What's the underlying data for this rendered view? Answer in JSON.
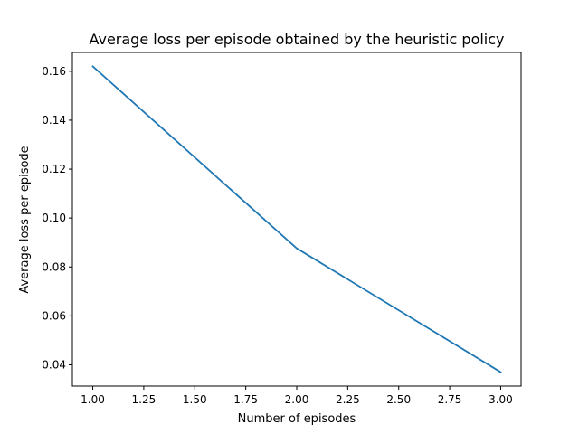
{
  "chart_data": {
    "type": "line",
    "title": "Average loss per episode obtained by the heuristic policy",
    "xlabel": "Number of episodes",
    "ylabel": "Average loss per episode",
    "xlim": [
      0.9,
      3.1
    ],
    "ylim": [
      0.0313,
      0.1677
    ],
    "xticks": [
      1.0,
      1.25,
      1.5,
      1.75,
      2.0,
      2.25,
      2.5,
      2.75,
      3.0
    ],
    "xtick_labels": [
      "1.00",
      "1.25",
      "1.50",
      "1.75",
      "2.00",
      "2.25",
      "2.50",
      "2.75",
      "3.00"
    ],
    "yticks": [
      0.04,
      0.06,
      0.08,
      0.1,
      0.12,
      0.14,
      0.16
    ],
    "ytick_labels": [
      "0.04",
      "0.06",
      "0.08",
      "0.10",
      "0.12",
      "0.14",
      "0.16"
    ],
    "grid": false,
    "series": [
      {
        "x": [
          1.0,
          2.0,
          3.0
        ],
        "y": [
          0.162,
          0.0876,
          0.037
        ],
        "color": "#1f77b4"
      }
    ]
  }
}
